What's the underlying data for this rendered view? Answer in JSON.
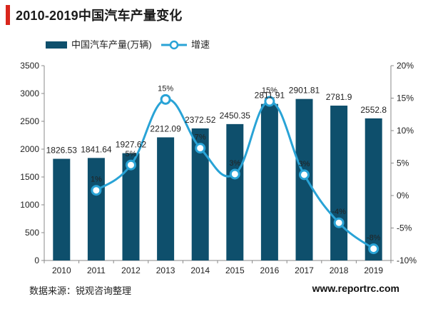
{
  "title": "2010-2019中国汽车产量变化",
  "colors": {
    "bar": "#0e4f6c",
    "line": "#29a3d6",
    "accent": "#d9261c"
  },
  "footer": {
    "source": "数据来源：锐观咨询整理",
    "site": "www.reportrc.com"
  },
  "chart_data": {
    "type": "bar+line",
    "categories": [
      "2010",
      "2011",
      "2012",
      "2013",
      "2014",
      "2015",
      "2016",
      "2017",
      "2018",
      "2019"
    ],
    "series": [
      {
        "name": "中国汽车产量(万辆)",
        "type": "bar",
        "axis": "left",
        "values": [
          1826.53,
          1841.64,
          1927.62,
          2212.09,
          2372.52,
          2450.35,
          2811.91,
          2901.81,
          2781.9,
          2552.8
        ],
        "labels": [
          "1826.53",
          "1841.64",
          "1927.62",
          "2212.09",
          "2372.52",
          "2450.35",
          "2811.91",
          "2901.81",
          "2781.9",
          "2552.8"
        ]
      },
      {
        "name": "增速",
        "type": "line",
        "axis": "right",
        "values": [
          null,
          0.8,
          4.7,
          14.8,
          7.3,
          3.3,
          14.5,
          3.2,
          -4.2,
          -8.2
        ],
        "labels": [
          null,
          "1%",
          "5%",
          "15%",
          "7%",
          "3%",
          "15%",
          "3%",
          "-4%",
          "-8%"
        ]
      }
    ],
    "left_axis": {
      "min": 0,
      "max": 3500,
      "ticks": [
        "0",
        "500",
        "1000",
        "1500",
        "2000",
        "2500",
        "3000",
        "3500"
      ]
    },
    "right_axis": {
      "min": -10,
      "max": 20,
      "ticks": [
        "-10%",
        "-5%",
        "0%",
        "5%",
        "10%",
        "15%",
        "20%"
      ]
    },
    "legend": "top-left",
    "grid": false
  }
}
